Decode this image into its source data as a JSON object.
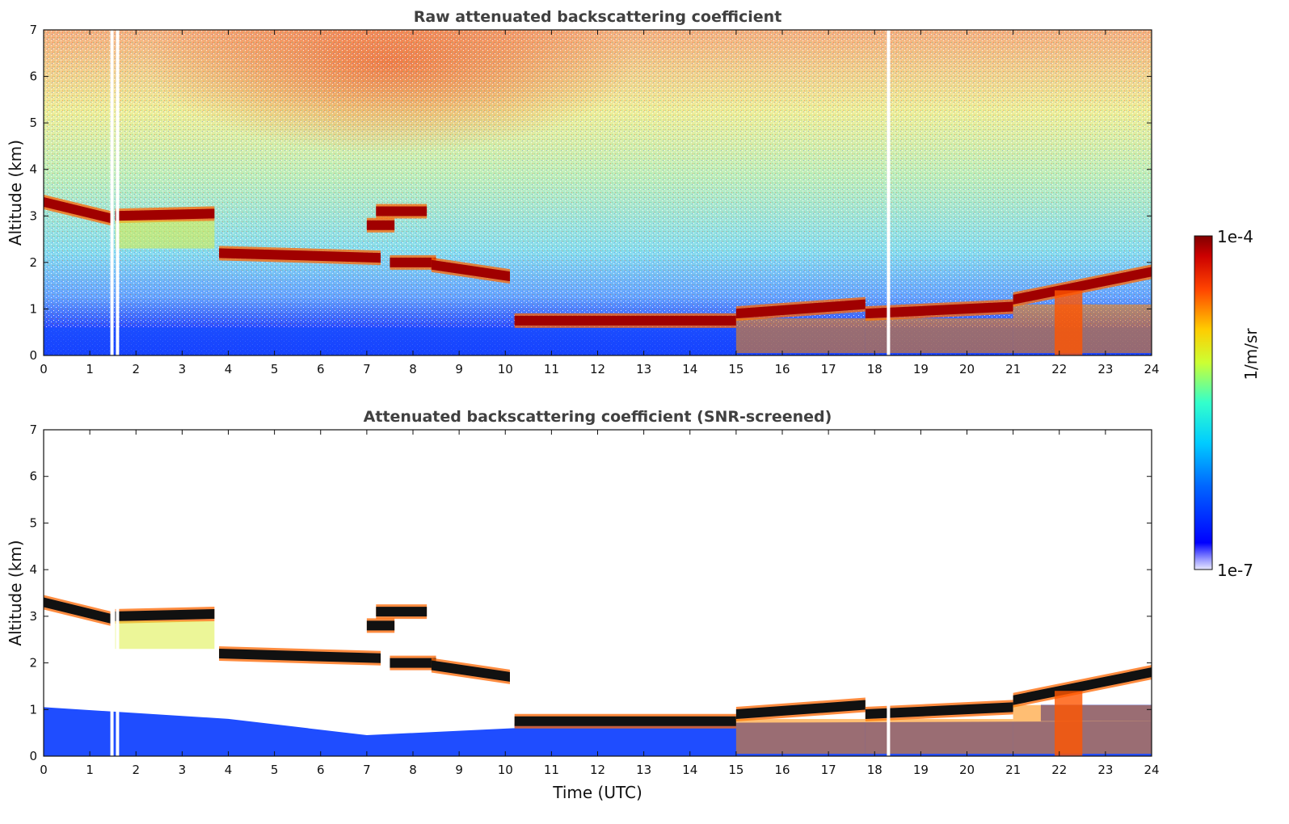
{
  "chart_data": [
    {
      "type": "heatmap",
      "title": "Raw attenuated backscattering coefficient",
      "xlabel": "",
      "ylabel": "Altitude (km)",
      "xlim": [
        0,
        24
      ],
      "ylim": [
        0,
        7
      ],
      "x_ticks": [
        "0",
        "1",
        "2",
        "3",
        "4",
        "5",
        "6",
        "7",
        "8",
        "9",
        "10",
        "11",
        "12",
        "13",
        "14",
        "15",
        "16",
        "17",
        "18",
        "19",
        "20",
        "21",
        "22",
        "23",
        "24"
      ],
      "y_ticks": [
        "0",
        "1",
        "2",
        "3",
        "4",
        "5",
        "6",
        "7"
      ],
      "screened": false,
      "cloud_layers": [
        {
          "t0": 0.0,
          "t1": 1.45,
          "alt_start": 3.3,
          "alt_end": 2.95
        },
        {
          "t0": 1.55,
          "t1": 3.7,
          "alt_start": 3.0,
          "alt_end": 3.05
        },
        {
          "t0": 3.8,
          "t1": 7.3,
          "alt_start": 2.2,
          "alt_end": 2.1
        },
        {
          "t0": 7.2,
          "t1": 8.3,
          "alt_start": 3.1,
          "alt_end": 3.1
        },
        {
          "t0": 7.0,
          "t1": 7.6,
          "alt_start": 2.8,
          "alt_end": 2.8
        },
        {
          "t0": 7.5,
          "t1": 8.5,
          "alt_start": 2.0,
          "alt_end": 2.0
        },
        {
          "t0": 8.4,
          "t1": 10.1,
          "alt_start": 1.95,
          "alt_end": 1.7
        },
        {
          "t0": 10.2,
          "t1": 15.0,
          "alt_start": 0.75,
          "alt_end": 0.75
        },
        {
          "t0": 15.0,
          "t1": 17.8,
          "alt_start": 0.9,
          "alt_end": 1.1
        },
        {
          "t0": 17.8,
          "t1": 21.0,
          "alt_start": 0.9,
          "alt_end": 1.05
        },
        {
          "t0": 21.0,
          "t1": 24.0,
          "alt_start": 1.2,
          "alt_end": 1.8
        }
      ],
      "data_gaps": [
        1.48,
        1.6,
        18.3
      ]
    },
    {
      "type": "heatmap",
      "title": "Attenuated backscattering coefficient (SNR-screened)",
      "xlabel": "Time (UTC)",
      "ylabel": "Altitude (km)",
      "xlim": [
        0,
        24
      ],
      "ylim": [
        0,
        7
      ],
      "x_ticks": [
        "0",
        "1",
        "2",
        "3",
        "4",
        "5",
        "6",
        "7",
        "8",
        "9",
        "10",
        "11",
        "12",
        "13",
        "14",
        "15",
        "16",
        "17",
        "18",
        "19",
        "20",
        "21",
        "22",
        "23",
        "24"
      ],
      "y_ticks": [
        "0",
        "1",
        "2",
        "3",
        "4",
        "5",
        "6",
        "7"
      ],
      "screened": true,
      "cloud_layers": [
        {
          "t0": 0.0,
          "t1": 1.45,
          "alt_start": 3.3,
          "alt_end": 2.95
        },
        {
          "t0": 1.55,
          "t1": 3.7,
          "alt_start": 3.0,
          "alt_end": 3.05
        },
        {
          "t0": 3.8,
          "t1": 7.3,
          "alt_start": 2.2,
          "alt_end": 2.1
        },
        {
          "t0": 7.2,
          "t1": 8.3,
          "alt_start": 3.1,
          "alt_end": 3.1
        },
        {
          "t0": 7.0,
          "t1": 7.6,
          "alt_start": 2.8,
          "alt_end": 2.8
        },
        {
          "t0": 7.5,
          "t1": 8.5,
          "alt_start": 2.0,
          "alt_end": 2.0
        },
        {
          "t0": 8.4,
          "t1": 10.1,
          "alt_start": 1.95,
          "alt_end": 1.7
        },
        {
          "t0": 10.2,
          "t1": 15.0,
          "alt_start": 0.75,
          "alt_end": 0.75
        },
        {
          "t0": 15.0,
          "t1": 17.8,
          "alt_start": 0.9,
          "alt_end": 1.1
        },
        {
          "t0": 17.8,
          "t1": 21.0,
          "alt_start": 0.9,
          "alt_end": 1.05
        },
        {
          "t0": 21.0,
          "t1": 24.0,
          "alt_start": 1.2,
          "alt_end": 1.8
        }
      ],
      "data_gaps": [
        1.48,
        1.6,
        18.3
      ]
    }
  ],
  "colorbar": {
    "label": "1/m/sr",
    "max_label": "1e-4",
    "min_label": "1e-7",
    "scale": "log",
    "colormap": "jet"
  }
}
